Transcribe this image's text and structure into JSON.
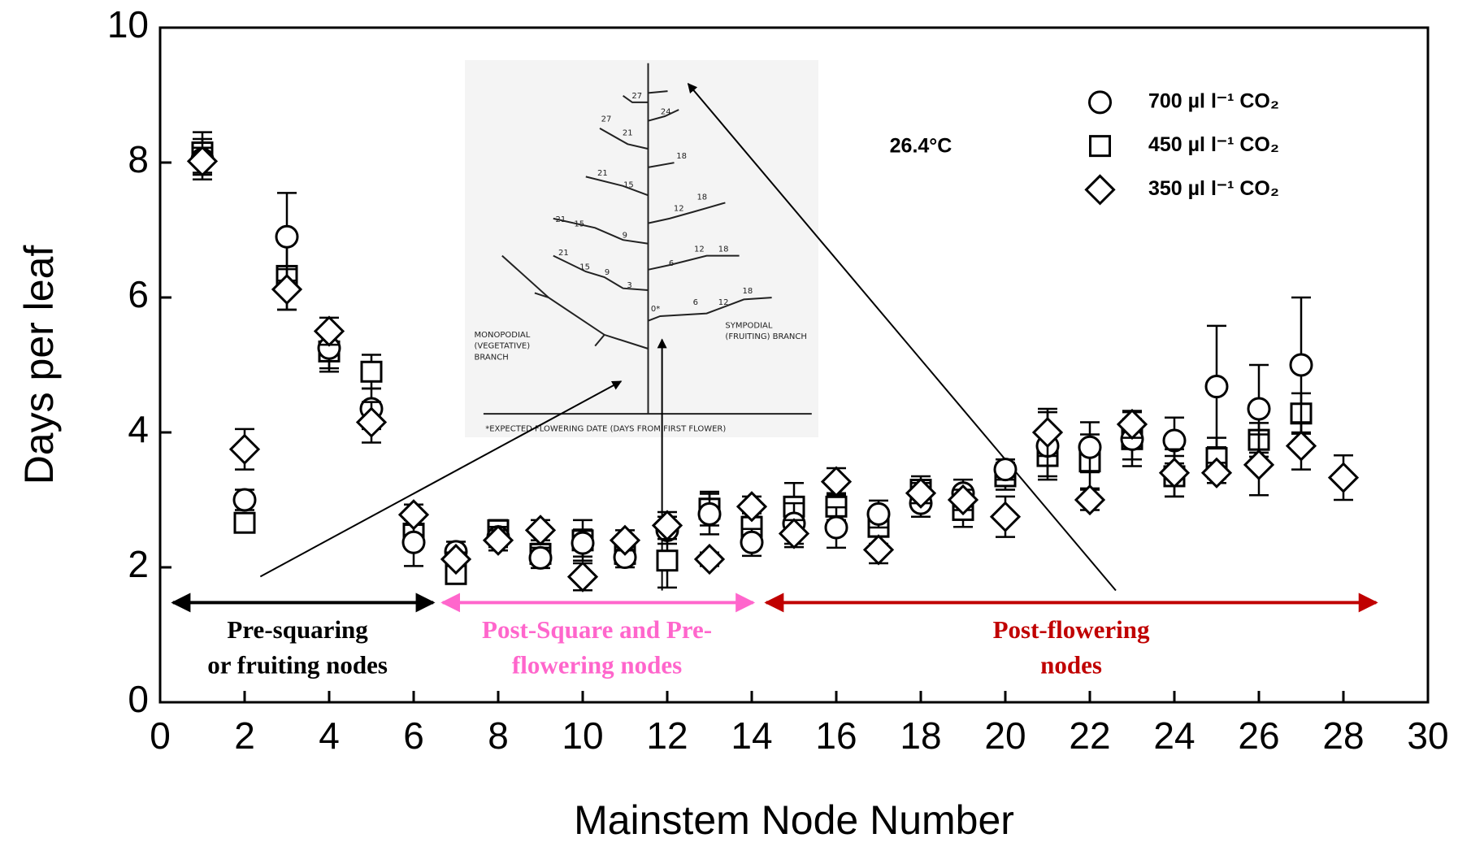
{
  "chart_data": {
    "type": "scatter",
    "ylabel": "Days per leaf",
    "xlabel": "Mainstem Node Number",
    "xlim": [
      0,
      30
    ],
    "xticks": [
      0,
      2,
      4,
      6,
      8,
      10,
      12,
      14,
      16,
      18,
      20,
      22,
      24,
      26,
      28,
      30
    ],
    "ylim": [
      0,
      10
    ],
    "yticks": [
      0,
      2,
      4,
      6,
      8,
      10
    ],
    "x": [
      1,
      2,
      3,
      4,
      5,
      6,
      7,
      8,
      9,
      10,
      11,
      12,
      13,
      14,
      15,
      16,
      17,
      18,
      19,
      20,
      21,
      22,
      23,
      24,
      25,
      26,
      27,
      28
    ],
    "series": [
      {
        "name": "450 µl l⁻¹ CO₂",
        "marker": "square",
        "color": "#000000",
        "values": [
          8.15,
          2.66,
          6.32,
          5.2,
          4.9,
          2.5,
          1.9,
          2.55,
          2.2,
          2.4,
          2.2,
          2.1,
          2.87,
          2.6,
          2.9,
          2.9,
          2.6,
          3.15,
          2.85,
          3.35,
          3.65,
          3.57,
          3.9,
          3.35,
          3.62,
          3.89,
          4.28,
          null
        ],
        "errors": [
          0.3,
          0.1,
          0.5,
          0.3,
          0.25,
          0.2,
          0.1,
          0.15,
          0.15,
          0.3,
          0.15,
          0.4,
          0.25,
          0.2,
          0.35,
          0.2,
          0.25,
          0.2,
          0.25,
          0.2,
          0.3,
          0.4,
          0.4,
          0.3,
          0.3,
          0.25,
          0.3,
          null
        ]
      },
      {
        "name": "700 µl l⁻¹ CO₂",
        "marker": "circle",
        "color": "#000000",
        "values": [
          8.05,
          3.0,
          6.9,
          5.25,
          4.35,
          2.37,
          2.23,
          2.45,
          2.14,
          2.36,
          2.15,
          2.55,
          2.79,
          2.37,
          2.65,
          2.59,
          2.79,
          2.95,
          3.1,
          3.45,
          3.8,
          3.78,
          3.9,
          3.88,
          4.68,
          4.35,
          5.0,
          null
        ],
        "errors": [
          0.3,
          0.15,
          0.65,
          0.3,
          0.3,
          0.35,
          0.15,
          0.15,
          0.15,
          0.2,
          0.15,
          0.2,
          0.3,
          0.2,
          0.3,
          0.3,
          0.2,
          0.2,
          0.2,
          0.15,
          0.5,
          0.37,
          0.3,
          0.34,
          0.9,
          0.65,
          1.0,
          null
        ]
      },
      {
        "name": "350 µl l⁻¹ CO₂",
        "marker": "diamond",
        "color": "#000000",
        "values": [
          8.02,
          3.75,
          6.12,
          5.5,
          4.15,
          2.78,
          2.12,
          2.4,
          2.55,
          1.86,
          2.4,
          2.62,
          2.12,
          2.9,
          2.5,
          3.27,
          2.26,
          3.1,
          3.0,
          2.75,
          4.0,
          3.0,
          4.12,
          3.4,
          3.4,
          3.52,
          3.8,
          3.33
        ],
        "errors": [
          0.2,
          0.3,
          0.3,
          0.2,
          0.3,
          0.15,
          0.1,
          0.15,
          0.15,
          0.2,
          0.15,
          0.2,
          0.1,
          0.15,
          0.2,
          0.2,
          0.2,
          0.15,
          0.15,
          0.3,
          0.35,
          0.15,
          0.2,
          0.35,
          0.15,
          0.45,
          0.35,
          0.33
        ]
      }
    ],
    "legend_order": [
      1,
      0,
      2
    ],
    "temperature": "26.4°C",
    "regions": [
      {
        "lines": [
          "Pre-squaring",
          "or fruiting nodes"
        ],
        "color": "#000000"
      },
      {
        "lines": [
          "Post-Square and Pre-",
          "flowering nodes"
        ],
        "color": "#ff66cc"
      },
      {
        "lines": [
          "Post-flowering",
          "nodes"
        ],
        "color": "#c00000"
      }
    ],
    "inset": {
      "monopodial": [
        "MONOPODIAL",
        "(VEGETATIVE)",
        "BRANCH"
      ],
      "sympodial": [
        "SYMPODIAL",
        "(FRUITING) BRANCH"
      ],
      "footnote": "*EXPECTED FLOWERING DATE (DAYS FROM FIRST FLOWER)",
      "numbers": [
        "27",
        "24",
        "27",
        "21",
        "18",
        "21",
        "15",
        "12",
        "18",
        "21",
        "15",
        "9",
        "6",
        "12",
        "18",
        "21",
        "15",
        "9",
        "3",
        "0*",
        "6",
        "12",
        "18"
      ]
    }
  }
}
